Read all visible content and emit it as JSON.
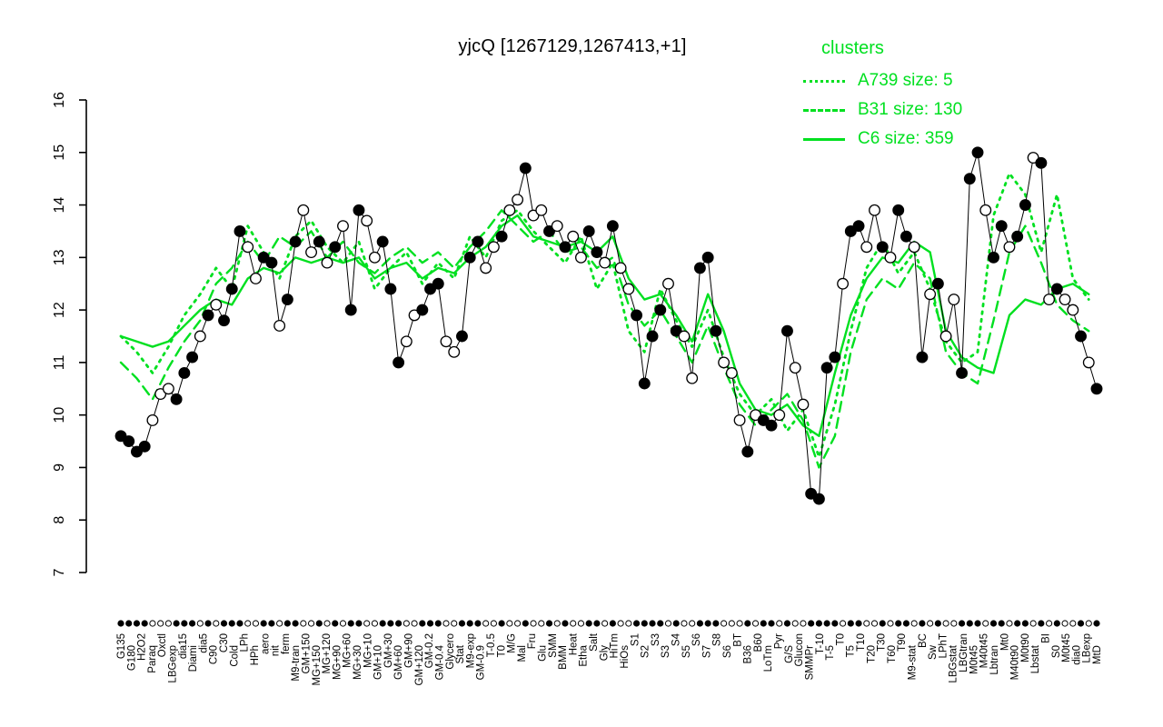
{
  "title": "yjcQ [1267129,1267413,+1]",
  "legend": {
    "title": "clusters",
    "color": "#00E020",
    "entries": [
      {
        "name": "A739",
        "label": "A739 size: 5",
        "style": "dotted",
        "size": 5
      },
      {
        "name": "B31",
        "label": "B31 size: 130",
        "style": "dashed",
        "size": 130
      },
      {
        "name": "C6",
        "label": "C6 size: 359",
        "style": "solid",
        "size": 359
      }
    ]
  },
  "axes": {
    "y_ticks": [
      7,
      8,
      9,
      10,
      11,
      12,
      13,
      14,
      15,
      16
    ],
    "y_label": "",
    "x_label": ""
  },
  "x_labels": [
    "G135",
    "G180",
    "H2O2",
    "Paraq",
    "Oxctl",
    "LBGexp",
    "dia15",
    "Diami",
    "dia5",
    "C90",
    "C30",
    "Cold",
    "LPh",
    "HPh",
    "aero",
    "nit",
    "ferm",
    "M9-tran",
    "GM+150",
    "MG+150",
    "MG+120",
    "MG+90",
    "MG+60",
    "MG+30",
    "MG+10",
    "GM+10",
    "GM+30",
    "GM+60",
    "GM+90",
    "GM+120",
    "GM-0.2",
    "GM-0.4",
    "Glycero",
    "Stat",
    "M9-exp",
    "GM-0.9",
    "T-0.5",
    "T0",
    "M/G",
    "Mal",
    "Fru",
    "Glu",
    "SMM",
    "BMM",
    "Heat",
    "Etha",
    "Salt",
    "Gly",
    "HiTm",
    "HiOs",
    "S1",
    "S2",
    "S3",
    "S3",
    "S4",
    "S5",
    "S6",
    "S7",
    "S8",
    "S6",
    "BT",
    "B36",
    "B60",
    "LoTm",
    "Pyr",
    "G/S",
    "Glucon",
    "SMMPr",
    "T-10",
    "T-5",
    "T0",
    "T5",
    "T10",
    "T20",
    "T30",
    "T60",
    "T90",
    "M9-stat",
    "BC",
    "Sw",
    "LPhT",
    "LBGstat",
    "LBGtran",
    "M0t45",
    "M40t45",
    "Lbtran",
    "Mt0",
    "M40t90",
    "M0t90",
    "Lbstat",
    "BI",
    "S0",
    "M0t45",
    "dia0",
    "LBexp",
    "MtD"
  ],
  "chart_data": {
    "type": "line",
    "title": "yjcQ [1267129,1267413,+1]",
    "ylim": [
      7,
      16
    ],
    "grid": false,
    "legend_position": "top-right",
    "points": {
      "description": "expression profile, black line; filled=1 black dot, filled=0 open dot",
      "y": [
        9.6,
        9.5,
        9.3,
        9.4,
        9.9,
        10.4,
        10.5,
        10.3,
        10.8,
        11.1,
        11.5,
        11.9,
        12.1,
        11.8,
        12.4,
        13.5,
        13.2,
        12.6,
        13.0,
        12.9,
        11.7,
        12.2,
        13.3,
        13.9,
        13.1,
        13.3,
        12.9,
        13.2,
        13.6,
        12.0,
        13.9,
        13.7,
        13.0,
        13.3,
        12.4,
        11.0,
        11.4,
        11.9,
        12.0,
        12.4,
        12.5,
        11.4,
        11.2,
        11.5,
        13.0,
        13.3,
        12.8,
        13.2,
        13.4,
        13.9,
        14.1,
        14.7,
        13.8,
        13.9,
        13.5,
        13.6,
        13.2,
        13.4,
        13.0,
        13.5,
        13.1,
        12.9,
        13.6,
        12.8,
        12.4,
        11.9,
        10.6,
        11.5,
        12.0,
        12.5,
        11.6,
        11.5,
        10.7,
        12.8,
        13.0,
        11.6,
        11.0,
        10.8,
        9.9,
        9.3,
        10.0,
        9.9,
        9.8,
        10.0,
        11.6,
        10.9,
        10.2,
        8.5,
        8.4,
        10.9,
        11.1,
        12.5,
        13.5,
        13.6,
        13.2,
        13.9,
        13.2,
        13.0,
        13.9,
        13.4,
        13.2,
        11.1,
        12.3,
        12.5,
        11.5,
        12.2,
        10.8,
        14.5,
        15.0,
        13.9,
        13.0,
        13.6,
        13.2,
        13.4,
        14.0,
        14.9,
        14.8,
        12.2,
        12.4,
        12.2,
        12.0,
        11.5,
        11.0,
        10.5
      ],
      "filled": [
        1,
        1,
        1,
        1,
        0,
        0,
        0,
        1,
        1,
        1,
        0,
        1,
        0,
        1,
        1,
        1,
        0,
        0,
        1,
        1,
        0,
        1,
        1,
        0,
        0,
        1,
        0,
        1,
        0,
        1,
        1,
        0,
        0,
        1,
        1,
        1,
        0,
        0,
        1,
        1,
        1,
        0,
        0,
        1,
        1,
        1,
        0,
        0,
        1,
        0,
        0,
        1,
        0,
        0,
        1,
        0,
        1,
        0,
        0,
        1,
        1,
        0,
        1,
        0,
        0,
        1,
        1,
        1,
        1,
        0,
        1,
        0,
        0,
        1,
        1,
        1,
        0,
        0,
        0,
        1,
        0,
        1,
        1,
        0,
        1,
        0,
        0,
        1,
        1,
        1,
        1,
        0,
        1,
        1,
        0,
        0,
        1,
        0,
        1,
        1,
        0,
        1,
        0,
        1,
        0,
        0,
        1,
        1,
        1,
        0,
        1,
        1,
        0,
        1,
        1,
        0,
        1,
        0,
        1,
        0,
        0,
        1,
        0,
        1
      ]
    },
    "clusters": [
      {
        "name": "A739",
        "size": 5,
        "style": "dotted",
        "x_step": 2,
        "y": [
          11.5,
          11.2,
          10.8,
          11.3,
          11.9,
          12.3,
          12.8,
          12.4,
          13.6,
          13.1,
          12.6,
          13.4,
          13.7,
          13.2,
          12.9,
          13.3,
          12.4,
          12.8,
          13.1,
          12.5,
          12.9,
          12.6,
          13.4,
          13.0,
          13.7,
          13.9,
          13.5,
          13.2,
          12.9,
          13.4,
          12.4,
          12.9,
          11.6,
          11.2,
          12.4,
          11.8,
          11.3,
          12.0,
          11.1,
          10.4,
          10.0,
          10.3,
          9.7,
          10.1,
          9.2,
          10.2,
          11.6,
          12.8,
          13.3,
          12.7,
          13.1,
          12.4,
          11.4,
          11.0,
          11.2,
          13.8,
          14.6,
          14.2,
          13.1,
          14.2,
          12.6,
          12.2
        ]
      },
      {
        "name": "B31",
        "size": 130,
        "style": "dashed",
        "x_step": 2,
        "y": [
          11.0,
          10.7,
          10.3,
          10.9,
          11.4,
          11.8,
          12.5,
          12.8,
          13.3,
          12.9,
          13.4,
          13.2,
          13.5,
          13.0,
          13.3,
          12.9,
          12.7,
          13.0,
          13.2,
          12.9,
          13.1,
          12.8,
          13.2,
          13.5,
          13.9,
          13.6,
          13.3,
          13.5,
          13.1,
          13.2,
          12.8,
          13.0,
          12.1,
          11.7,
          12.0,
          11.5,
          11.0,
          11.7,
          10.9,
          10.2,
          9.8,
          10.1,
          10.4,
          9.9,
          9.0,
          9.6,
          11.2,
          12.2,
          12.6,
          12.4,
          12.9,
          12.6,
          11.2,
          10.8,
          10.6,
          11.8,
          13.1,
          13.6,
          12.9,
          12.1,
          11.8,
          11.6
        ]
      },
      {
        "name": "C6",
        "size": 359,
        "style": "solid",
        "x_step": 2,
        "y": [
          11.5,
          11.4,
          11.3,
          11.4,
          11.7,
          12.0,
          12.2,
          12.1,
          12.6,
          12.8,
          12.7,
          13.0,
          12.9,
          13.0,
          12.9,
          13.0,
          12.6,
          12.8,
          12.9,
          12.6,
          12.8,
          12.7,
          13.0,
          13.2,
          13.6,
          13.8,
          13.4,
          13.3,
          13.2,
          13.3,
          13.1,
          13.4,
          12.6,
          12.2,
          12.3,
          11.9,
          11.4,
          12.3,
          11.6,
          10.6,
          10.1,
          10.0,
          10.2,
          9.8,
          9.6,
          10.8,
          11.9,
          12.6,
          13.0,
          12.9,
          13.3,
          13.1,
          11.6,
          11.1,
          10.9,
          10.8,
          11.9,
          12.2,
          12.1,
          12.4,
          12.5,
          12.3
        ]
      }
    ]
  }
}
